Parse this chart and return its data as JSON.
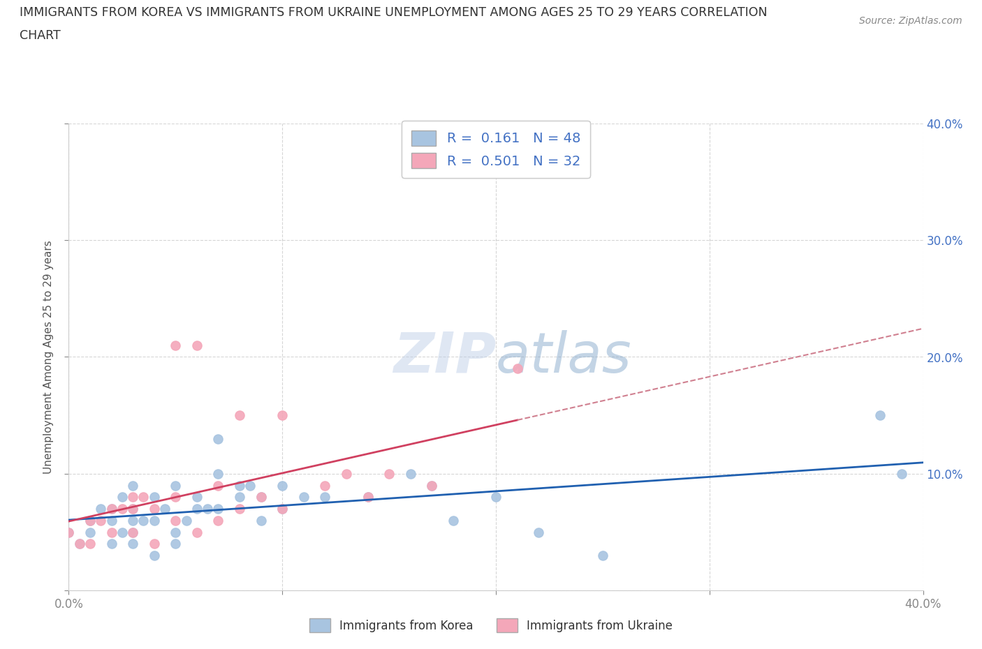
{
  "title_line1": "IMMIGRANTS FROM KOREA VS IMMIGRANTS FROM UKRAINE UNEMPLOYMENT AMONG AGES 25 TO 29 YEARS CORRELATION",
  "title_line2": "CHART",
  "source_text": "Source: ZipAtlas.com",
  "ylabel": "Unemployment Among Ages 25 to 29 years",
  "watermark": "ZIPatlas",
  "korea_color": "#a8c4e0",
  "ukraine_color": "#f4a7b9",
  "korea_line_color": "#2060b0",
  "ukraine_line_color": "#d04060",
  "ukraine_dash_color": "#d08090",
  "R_korea": 0.161,
  "N_korea": 48,
  "R_ukraine": 0.501,
  "N_ukraine": 32,
  "korea_scatter_x": [
    0.0,
    0.005,
    0.01,
    0.01,
    0.015,
    0.02,
    0.02,
    0.02,
    0.025,
    0.025,
    0.03,
    0.03,
    0.03,
    0.03,
    0.03,
    0.035,
    0.04,
    0.04,
    0.04,
    0.045,
    0.05,
    0.05,
    0.05,
    0.055,
    0.06,
    0.06,
    0.065,
    0.07,
    0.07,
    0.07,
    0.08,
    0.08,
    0.085,
    0.09,
    0.09,
    0.1,
    0.1,
    0.11,
    0.12,
    0.14,
    0.16,
    0.17,
    0.18,
    0.2,
    0.22,
    0.25,
    0.38,
    0.39
  ],
  "korea_scatter_y": [
    0.05,
    0.04,
    0.05,
    0.06,
    0.07,
    0.04,
    0.06,
    0.07,
    0.05,
    0.08,
    0.04,
    0.05,
    0.06,
    0.07,
    0.09,
    0.06,
    0.03,
    0.06,
    0.08,
    0.07,
    0.04,
    0.05,
    0.09,
    0.06,
    0.07,
    0.08,
    0.07,
    0.07,
    0.1,
    0.13,
    0.08,
    0.09,
    0.09,
    0.06,
    0.08,
    0.07,
    0.09,
    0.08,
    0.08,
    0.08,
    0.1,
    0.09,
    0.06,
    0.08,
    0.05,
    0.03,
    0.15,
    0.1
  ],
  "ukraine_scatter_x": [
    0.0,
    0.005,
    0.01,
    0.01,
    0.015,
    0.02,
    0.02,
    0.025,
    0.03,
    0.03,
    0.03,
    0.035,
    0.04,
    0.04,
    0.05,
    0.05,
    0.05,
    0.06,
    0.06,
    0.07,
    0.07,
    0.08,
    0.08,
    0.09,
    0.1,
    0.1,
    0.12,
    0.13,
    0.14,
    0.15,
    0.17,
    0.21
  ],
  "ukraine_scatter_y": [
    0.05,
    0.04,
    0.04,
    0.06,
    0.06,
    0.05,
    0.07,
    0.07,
    0.05,
    0.07,
    0.08,
    0.08,
    0.04,
    0.07,
    0.06,
    0.21,
    0.08,
    0.05,
    0.21,
    0.06,
    0.09,
    0.07,
    0.15,
    0.08,
    0.07,
    0.15,
    0.09,
    0.1,
    0.08,
    0.1,
    0.09,
    0.19
  ],
  "legend_korea_label": "Immigrants from Korea",
  "legend_ukraine_label": "Immigrants from Ukraine",
  "background_color": "#ffffff",
  "grid_color": "#cccccc",
  "xlim": [
    0.0,
    0.4
  ],
  "ylim": [
    0.0,
    0.4
  ]
}
